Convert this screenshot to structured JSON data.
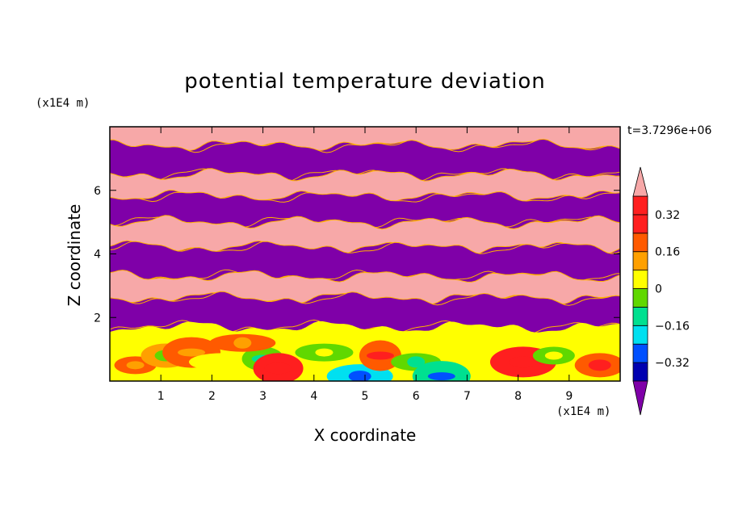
{
  "chart_data": {
    "type": "heatmap",
    "title": "potential temperature deviation",
    "xlabel": "X coordinate",
    "ylabel": "Z coordinate",
    "x_unit": "(x1E4 m)",
    "y_unit": "(x1E4 m)",
    "time_label": "t=3.7296e+06",
    "xlim": [
      0,
      10
    ],
    "ylim": [
      0,
      8
    ],
    "x_ticks": [
      "1",
      "2",
      "3",
      "4",
      "5",
      "6",
      "7",
      "8",
      "9"
    ],
    "y_ticks": [
      "2",
      "4",
      "6"
    ],
    "colorbar": {
      "levels": [
        -0.4,
        -0.32,
        -0.24,
        -0.16,
        -0.08,
        0,
        0.08,
        0.16,
        0.24,
        0.32,
        0.4
      ],
      "labels": [
        "0.32",
        "0.16",
        "0",
        "−0.16",
        "−0.32"
      ],
      "label_values": [
        0.32,
        0.16,
        0,
        -0.16,
        -0.32
      ],
      "colors": [
        "#7f00a8",
        "#0000b0",
        "#0050ff",
        "#00e0f0",
        "#00e090",
        "#60d800",
        "#ffff00",
        "#ffa000",
        "#ff5a00",
        "#ff1f1f",
        "#f7a8a8"
      ],
      "extend": "both"
    },
    "layers": [
      {
        "z": [
          7.4,
          8.0
        ],
        "value": 0.45
      },
      {
        "z": [
          6.5,
          7.4
        ],
        "value": -0.45
      },
      {
        "z": [
          5.8,
          6.5
        ],
        "value": 0.45
      },
      {
        "z": [
          5.0,
          5.8
        ],
        "value": -0.45
      },
      {
        "z": [
          4.2,
          5.0
        ],
        "value": 0.45
      },
      {
        "z": [
          3.3,
          4.2
        ],
        "value": -0.45
      },
      {
        "z": [
          2.6,
          3.3
        ],
        "value": 0.45
      },
      {
        "z": [
          1.7,
          2.6
        ],
        "value": -0.45
      },
      {
        "z": [
          0.0,
          1.7
        ],
        "value": 0.0
      }
    ]
  }
}
